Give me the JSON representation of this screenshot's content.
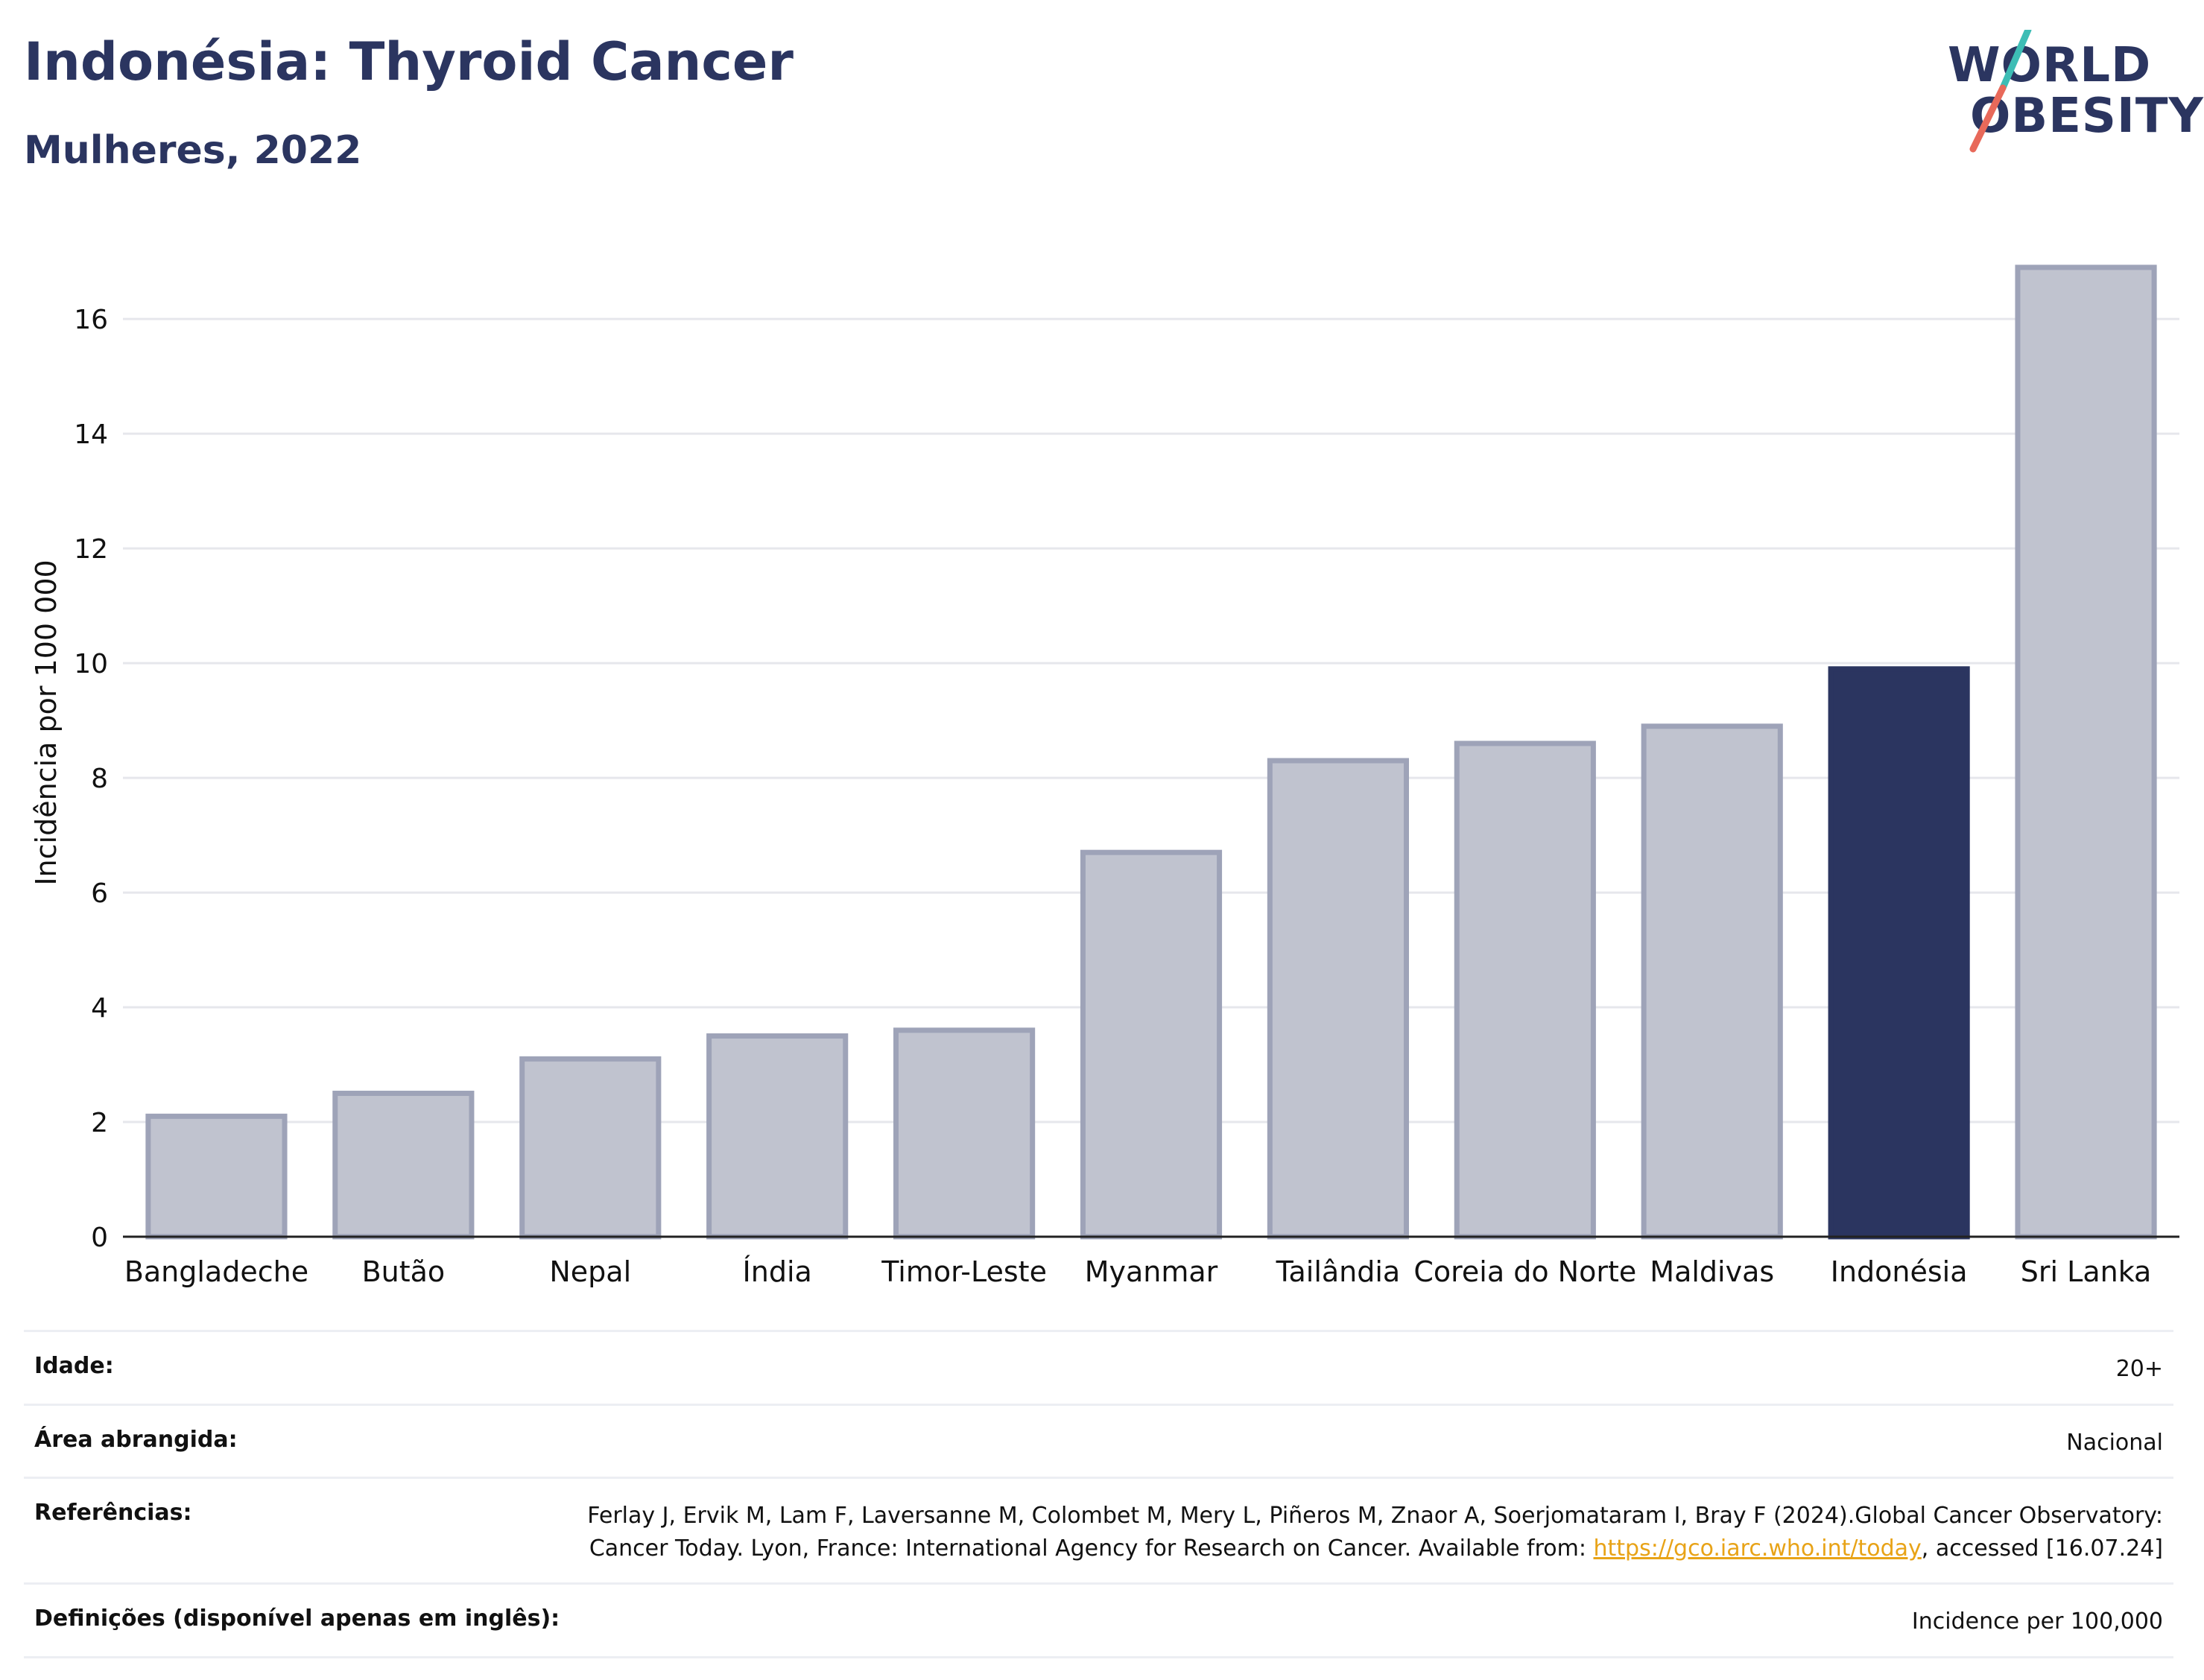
{
  "header": {
    "title": "Indonésia: Thyroid Cancer",
    "subtitle": "Mulheres, 2022"
  },
  "logo": {
    "line1": "WORLD",
    "line2": "OBESITY"
  },
  "colors": {
    "highlight": "#2b3560",
    "bar_fill": "#c0c3cf",
    "bar_stroke": "#9ea3b8",
    "grid": "#e6e7ec",
    "logo_teal": "#3dbdb5",
    "logo_coral": "#e8695a"
  },
  "chart_data": {
    "type": "bar",
    "title": "Indonésia: Thyroid Cancer",
    "subtitle": "Mulheres, 2022",
    "xlabel": "",
    "ylabel": "Incidência por 100 000",
    "categories": [
      "Bangladeche",
      "Butão",
      "Nepal",
      "Índia",
      "Timor-Leste",
      "Myanmar",
      "Tailândia",
      "Coreia do Norte",
      "Maldivas",
      "Indonésia",
      "Sri Lanka"
    ],
    "values": [
      2.1,
      2.5,
      3.1,
      3.5,
      3.6,
      6.7,
      8.3,
      8.6,
      8.9,
      9.9,
      16.9
    ],
    "highlight": "Indonésia",
    "ylim": [
      0,
      17.6
    ],
    "yticks": [
      0,
      2,
      4,
      6,
      8,
      10,
      12,
      14,
      16
    ],
    "grid": true
  },
  "meta": {
    "age_label": "Idade:",
    "age_value": "20+",
    "area_label": "Área abrangida:",
    "area_value": "Nacional",
    "ref_label": "Referências:",
    "ref_text_1": "Ferlay J, Ervik M, Lam F, Laversanne M, Colombet M, Mery L, Piñeros M, Znaor A, Soerjomataram I, Bray F (2024).Global Cancer Observatory: Cancer Today. Lyon, France: International Agency for Research on Cancer. Available from: ",
    "ref_link": "https://gco.iarc.who.int/today",
    "ref_text_2": ", accessed [16.07.24]",
    "def_label": "Definições (disponível apenas em inglês):",
    "def_value": "Incidence per 100,000"
  }
}
